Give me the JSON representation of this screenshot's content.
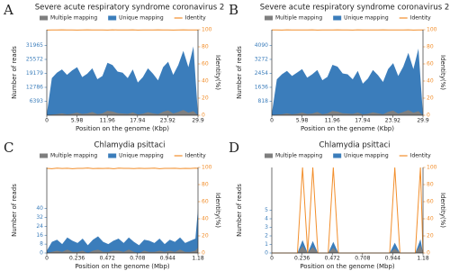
{
  "chart_data": [
    {
      "type": "area",
      "panel": "A",
      "title": "Severe acute respiratory syndrome coronavirus 2",
      "xlabel": "Position on the genome (Kbp)",
      "ylabel": "Number of reads",
      "y2label": "Identity(%)",
      "x": [
        0,
        1,
        2,
        3,
        4,
        5,
        6,
        7,
        8,
        9,
        10,
        11,
        12,
        13,
        14,
        15,
        16,
        17,
        18,
        19,
        20,
        21,
        22,
        23,
        24,
        25,
        26,
        27,
        28,
        29,
        29.9
      ],
      "xlim": [
        0,
        29.9
      ],
      "xticks": [
        0,
        5.98,
        11.96,
        17.94,
        23.92,
        29.9
      ],
      "ylim": [
        0,
        39180
      ],
      "yticks": [
        6393,
        12786,
        19179,
        25572,
        31965
      ],
      "y2lim": [
        0,
        100
      ],
      "y2ticks": [
        0,
        20,
        40,
        60,
        80,
        100
      ],
      "series": [
        {
          "name": "Multiple mapping",
          "color": "#7f7f7f",
          "values": [
            0,
            300,
            500,
            900,
            400,
            700,
            1200,
            600,
            800,
            1500,
            500,
            900,
            2000,
            1700,
            1000,
            800,
            600,
            1300,
            400,
            700,
            1400,
            900,
            500,
            1600,
            2200,
            800,
            1500,
            2400,
            1200,
            1900,
            0
          ]
        },
        {
          "name": "Unique mapping",
          "color": "#3b7dbb",
          "values": [
            600,
            17000,
            19500,
            21000,
            18500,
            20500,
            22000,
            17500,
            19000,
            21500,
            16500,
            18000,
            24000,
            23000,
            20000,
            19500,
            17000,
            21000,
            15000,
            17500,
            21500,
            19000,
            16000,
            22000,
            24500,
            18500,
            23000,
            29500,
            22000,
            31500,
            0
          ]
        },
        {
          "name": "Identity",
          "color": "#f28e2b",
          "axis": "y2",
          "values": [
            99.6,
            99.8,
            99.7,
            99.9,
            99.7,
            99.8,
            99.6,
            99.8,
            99.9,
            99.7,
            99.8,
            99.8,
            99.6,
            99.9,
            99.7,
            99.8,
            99.7,
            99.9,
            99.6,
            99.8,
            99.7,
            99.8,
            99.9,
            99.7,
            99.8,
            99.6,
            99.8,
            99.9,
            99.7,
            99.8,
            99.7
          ]
        }
      ]
    },
    {
      "type": "area",
      "panel": "B",
      "title": "Severe acute respiratory syndrome coronavirus 2",
      "xlabel": "Position on the genome (Kbp)",
      "ylabel": "Number of reads",
      "y2label": "Identity(%)",
      "x": [
        0,
        1,
        2,
        3,
        4,
        5,
        6,
        7,
        8,
        9,
        10,
        11,
        12,
        13,
        14,
        15,
        16,
        17,
        18,
        19,
        20,
        21,
        22,
        23,
        24,
        25,
        26,
        27,
        28,
        29,
        29.9
      ],
      "xlim": [
        0,
        29.9
      ],
      "xticks": [
        0,
        5.98,
        11.96,
        17.94,
        23.92,
        29.9
      ],
      "ylim": [
        0,
        5010
      ],
      "yticks": [
        818,
        1636,
        2454,
        3272,
        4090
      ],
      "y2lim": [
        0,
        100
      ],
      "y2ticks": [
        0,
        20,
        40,
        60,
        80,
        100
      ],
      "series": [
        {
          "name": "Multiple mapping",
          "color": "#7f7f7f",
          "values": [
            0,
            40,
            60,
            110,
            50,
            90,
            150,
            80,
            100,
            190,
            60,
            110,
            250,
            210,
            120,
            100,
            80,
            160,
            50,
            90,
            170,
            110,
            60,
            200,
            270,
            100,
            190,
            300,
            150,
            240,
            0
          ]
        },
        {
          "name": "Unique mapping",
          "color": "#3b7dbb",
          "values": [
            100,
            2100,
            2400,
            2600,
            2300,
            2500,
            2700,
            2200,
            2400,
            2650,
            2050,
            2250,
            2950,
            2850,
            2450,
            2400,
            2100,
            2600,
            1850,
            2150,
            2650,
            2350,
            1950,
            2700,
            3050,
            2300,
            2850,
            3650,
            2700,
            3900,
            0
          ]
        },
        {
          "name": "Identity",
          "color": "#f28e2b",
          "axis": "y2",
          "values": [
            99.7,
            99.8,
            99.6,
            99.9,
            99.7,
            99.8,
            99.7,
            99.8,
            99.9,
            99.6,
            99.8,
            99.7,
            99.8,
            99.9,
            99.7,
            99.8,
            99.6,
            99.9,
            99.7,
            99.8,
            99.7,
            99.8,
            99.9,
            99.7,
            99.8,
            99.7,
            99.8,
            99.9,
            99.6,
            99.8,
            99.7
          ]
        }
      ]
    },
    {
      "type": "area",
      "panel": "C",
      "title": "Chlamydia psittaci",
      "xlabel": "Position on the genome (Mbp)",
      "ylabel": "Number of reads",
      "y2label": "Identity(%)",
      "x": [
        0,
        0.04,
        0.08,
        0.12,
        0.16,
        0.2,
        0.24,
        0.28,
        0.32,
        0.36,
        0.4,
        0.44,
        0.48,
        0.52,
        0.56,
        0.6,
        0.64,
        0.68,
        0.72,
        0.76,
        0.8,
        0.84,
        0.88,
        0.92,
        0.96,
        1.0,
        1.04,
        1.08,
        1.12,
        1.16,
        1.18
      ],
      "xlim": [
        0,
        1.18
      ],
      "xticks": [
        0,
        0.236,
        0.472,
        0.708,
        0.944,
        1.18
      ],
      "ylim": [
        0,
        77
      ],
      "yticks": [
        0,
        8,
        16,
        24,
        32,
        40
      ],
      "y2lim": [
        0,
        100
      ],
      "y2ticks": [
        0,
        20,
        40,
        60,
        80,
        100
      ],
      "series": [
        {
          "name": "Multiple mapping",
          "color": "#7f7f7f",
          "values": [
            0,
            1,
            2,
            1,
            3,
            1,
            1,
            2,
            0,
            2,
            3,
            1,
            1,
            2,
            2,
            1,
            3,
            1,
            0,
            2,
            1,
            1,
            2,
            1,
            2,
            1,
            3,
            1,
            1,
            2,
            5
          ]
        },
        {
          "name": "Unique mapping",
          "color": "#3b7dbb",
          "values": [
            2,
            10,
            12,
            8,
            14,
            11,
            9,
            13,
            7,
            12,
            15,
            10,
            8,
            11,
            13,
            9,
            14,
            10,
            7,
            12,
            11,
            9,
            13,
            8,
            12,
            10,
            14,
            9,
            11,
            13,
            40
          ]
        },
        {
          "name": "Identity",
          "color": "#f28e2b",
          "axis": "y2",
          "values": [
            99,
            98.5,
            99.2,
            98.8,
            99.1,
            98.6,
            99,
            98.9,
            99.3,
            98.7,
            99,
            98.8,
            99.1,
            98.5,
            99.2,
            98.9,
            99,
            98.7,
            99.1,
            98.8,
            99,
            99.2,
            98.6,
            99,
            98.9,
            99.1,
            98.7,
            99,
            98.8,
            99.2,
            99
          ]
        }
      ]
    },
    {
      "type": "area",
      "panel": "D",
      "title": "Chlamydia psittaci",
      "xlabel": "Position on the genome (Mbp)",
      "ylabel": "Number of reads",
      "y2label": "Identity(%)",
      "x": [
        0,
        0.04,
        0.08,
        0.12,
        0.16,
        0.2,
        0.24,
        0.28,
        0.32,
        0.36,
        0.4,
        0.44,
        0.48,
        0.52,
        0.56,
        0.6,
        0.64,
        0.68,
        0.72,
        0.76,
        0.8,
        0.84,
        0.88,
        0.92,
        0.96,
        1.0,
        1.04,
        1.08,
        1.12,
        1.16,
        1.18
      ],
      "xlim": [
        0,
        1.18
      ],
      "xticks": [
        0,
        0.236,
        0.472,
        0.708,
        0.944,
        1.18
      ],
      "ylim": [
        0,
        10
      ],
      "yticks": [
        0,
        1,
        2,
        3,
        4,
        5
      ],
      "y2lim": [
        0,
        100
      ],
      "y2ticks": [
        0,
        20,
        40,
        60,
        80,
        100
      ],
      "series": [
        {
          "name": "Multiple mapping",
          "color": "#7f7f7f",
          "values": [
            0,
            0,
            0,
            0,
            0,
            0,
            0.8,
            0,
            0.7,
            0,
            0,
            0,
            0.6,
            0,
            0,
            0,
            0,
            0,
            0,
            0,
            0,
            0,
            0,
            0,
            0.5,
            0,
            0,
            0,
            0,
            0.9,
            0
          ]
        },
        {
          "name": "Unique mapping",
          "color": "#3b7dbb",
          "values": [
            0,
            0,
            0,
            0,
            0,
            0,
            1.5,
            0,
            1.4,
            0,
            0,
            0,
            1.3,
            0,
            0,
            0,
            0,
            0,
            0,
            0,
            0,
            0,
            0,
            0,
            1.2,
            0,
            0,
            0,
            0,
            1.6,
            0
          ]
        },
        {
          "name": "Identity",
          "color": "#f28e2b",
          "axis": "y2",
          "values": [
            0,
            0,
            0,
            0,
            0,
            0,
            100,
            0,
            100,
            0,
            0,
            0,
            100,
            0,
            0,
            0,
            0,
            0,
            0,
            0,
            0,
            0,
            0,
            0,
            100,
            0,
            0,
            0,
            0,
            100,
            0
          ]
        }
      ]
    }
  ]
}
